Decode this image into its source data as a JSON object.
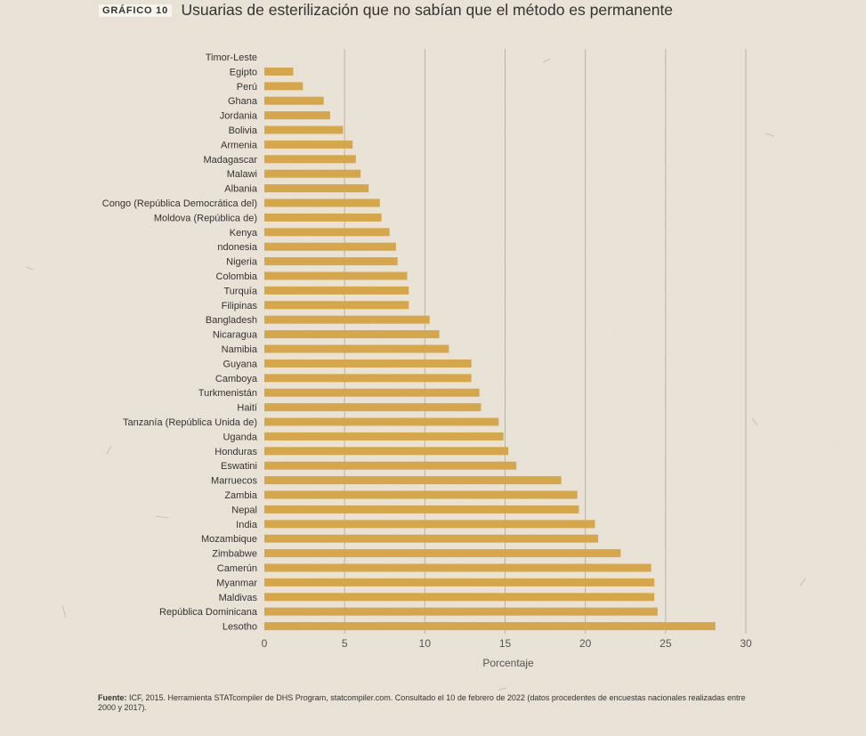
{
  "header": {
    "tag": "GRÁFICO 10",
    "title": "Usuarias de esterilización que no sabían que el método es permanente"
  },
  "colors": {
    "bar": "#d5a64a",
    "grid": "#b5ada2",
    "text": "#333333",
    "background": "#ebe4d8"
  },
  "chart_data": {
    "type": "bar",
    "orientation": "horizontal",
    "title": "Usuarias de esterilización que no sabían que el método es permanente",
    "xlabel": "Porcentaje",
    "ylabel": "",
    "xlim": [
      0,
      30
    ],
    "xticks": [
      0,
      5,
      10,
      15,
      20,
      25,
      30
    ],
    "grid": true,
    "categories": [
      "Timor-Leste",
      "Egipto",
      "Perú",
      "Ghana",
      "Jordania",
      "Bolivia",
      "Armenia",
      "Madagascar",
      "Malawi",
      "Albania",
      "Congo (República Democrática del)",
      "Moldova (República de)",
      "Kenya",
      "ndonesia",
      "Nigeria",
      "Colombia",
      "Turquía",
      "Filipinas",
      "Bangladesh",
      "Nicaragua",
      "Namibia",
      "Guyana",
      "Camboya",
      "Turkmenistán",
      "Haití",
      "Tanzanía (República Unida de)",
      "Uganda",
      "Honduras",
      "Eswatini",
      "Marruecos",
      "Zambia",
      "Nepal",
      "India",
      "Mozambique",
      "Zimbabwe",
      "Camerún",
      "Myanmar",
      "Maldivas",
      "República Dominicana",
      "Lesotho"
    ],
    "values": [
      0,
      1.8,
      2.4,
      3.7,
      4.1,
      4.9,
      5.5,
      5.7,
      6.0,
      6.5,
      7.2,
      7.3,
      7.8,
      8.2,
      8.3,
      8.9,
      9.0,
      9.0,
      10.3,
      10.9,
      11.5,
      12.9,
      12.9,
      13.4,
      13.5,
      14.6,
      14.9,
      15.2,
      15.7,
      18.5,
      19.5,
      19.6,
      20.6,
      20.8,
      22.2,
      24.1,
      24.3,
      24.3,
      24.5,
      28.1
    ]
  },
  "footer": {
    "label": "Fuente:",
    "text": " ICF, 2015. Herramienta STATcompiler de DHS Program, statcompiler.com. Consultado el 10 de febrero de 2022 (datos procedentes de encuestas nacionales realizadas entre 2000 y 2017)."
  }
}
